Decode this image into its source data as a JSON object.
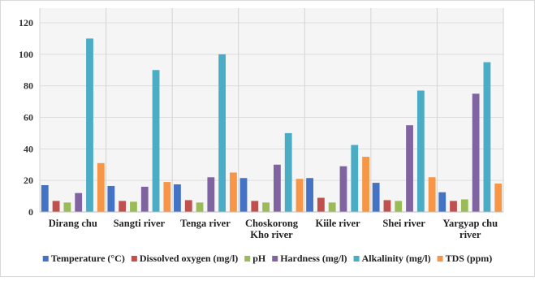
{
  "chart_data": {
    "type": "bar",
    "title": "",
    "xlabel": "",
    "ylabel": "",
    "ylim": [
      0,
      120
    ],
    "yticks": [
      0,
      20,
      40,
      60,
      80,
      100,
      120
    ],
    "grid": true,
    "legend_position": "bottom",
    "categories": [
      [
        "Dirang chu"
      ],
      [
        "Sangti river"
      ],
      [
        "Tenga river"
      ],
      [
        "Choskorong",
        "Kho river"
      ],
      [
        "Kiile river"
      ],
      [
        "Shei river"
      ],
      [
        "Yargyap chu",
        "river"
      ]
    ],
    "series": [
      {
        "name": "Temperature (°C)",
        "color": "#4472C4",
        "values": [
          17,
          16.5,
          17.5,
          21.5,
          21.5,
          18.5,
          12.5
        ]
      },
      {
        "name": "Dissolved oxygen (mg/l)",
        "color": "#C0504D",
        "values": [
          7,
          7,
          7.5,
          7,
          9,
          7.5,
          7
        ]
      },
      {
        "name": "pH",
        "color": "#9BBB59",
        "values": [
          6,
          6.5,
          6,
          6,
          6,
          7,
          8
        ]
      },
      {
        "name": "Hardness (mg/l)",
        "color": "#8064A2",
        "values": [
          12,
          16,
          22,
          30,
          29,
          55,
          75
        ]
      },
      {
        "name": "Alkalinity (mg/l)",
        "color": "#4BACC6",
        "values": [
          110,
          90,
          100,
          50,
          42.5,
          77,
          95
        ]
      },
      {
        "name": "TDS (ppm)",
        "color": "#F79646",
        "values": [
          31,
          19,
          25,
          21,
          35,
          22,
          18
        ]
      }
    ]
  }
}
